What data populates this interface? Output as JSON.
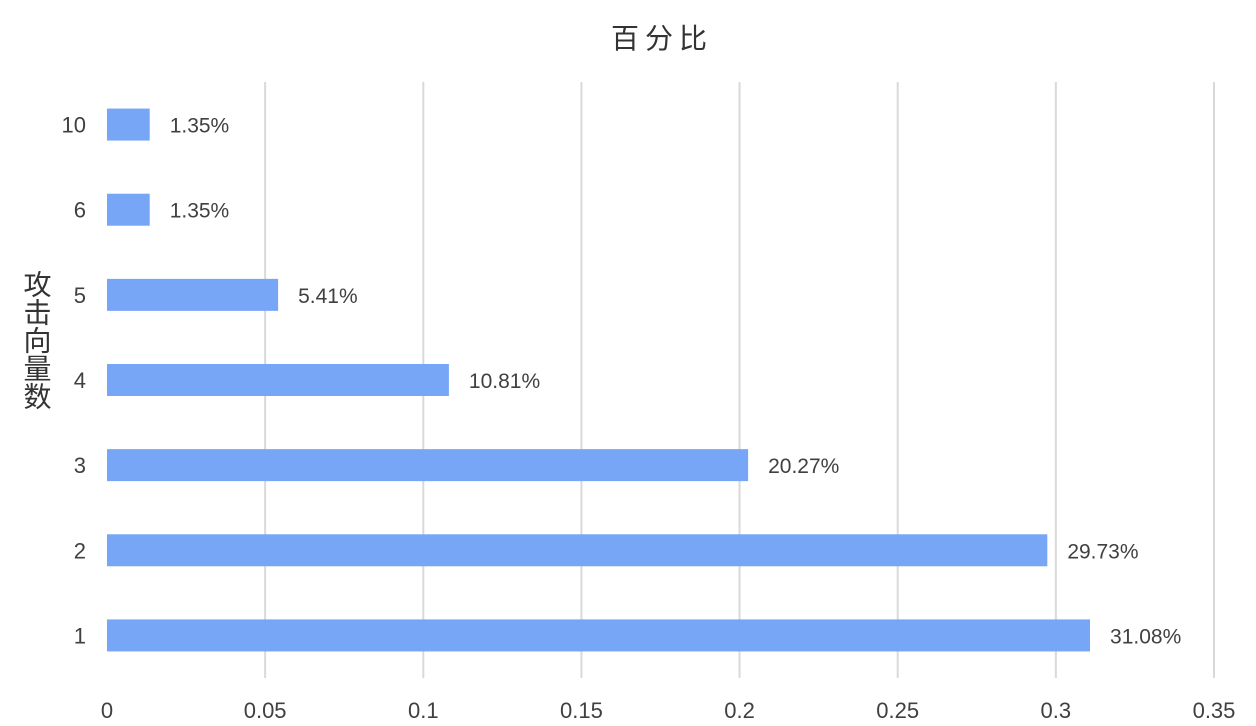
{
  "chart_data": {
    "type": "bar",
    "orientation": "horizontal",
    "title": "百分比",
    "xlabel": "",
    "ylabel": "攻击向量数",
    "categories": [
      "1",
      "2",
      "3",
      "4",
      "5",
      "6",
      "10"
    ],
    "values": [
      0.3108,
      0.2973,
      0.2027,
      0.1081,
      0.0541,
      0.0135,
      0.0135
    ],
    "data_labels": [
      "31.08%",
      "29.73%",
      "20.27%",
      "10.81%",
      "5.41%",
      "1.35%",
      "1.35%"
    ],
    "xlim": [
      0,
      0.35
    ],
    "xticks": [
      "0",
      "0.05",
      "0.1",
      "0.15",
      "0.2",
      "0.25",
      "0.3",
      "0.35"
    ],
    "grid": true,
    "legend": "none",
    "bar_color": "#78a6f7",
    "grid_color": "#d9d9d9"
  }
}
